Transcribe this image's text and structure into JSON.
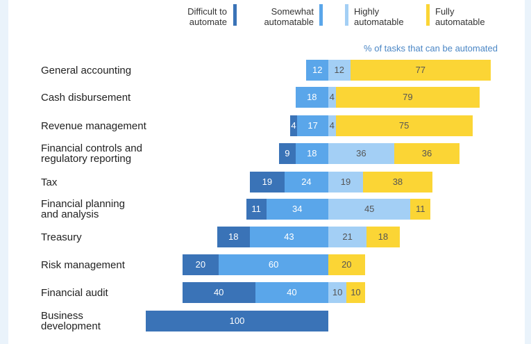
{
  "colors": {
    "difficult": "#3a73b7",
    "somewhat": "#5aa6ea",
    "highly": "#a3cff5",
    "fully": "#fbd535",
    "background": "#eaf3fb"
  },
  "chart_data": {
    "type": "bar",
    "orientation": "horizontal-diverging",
    "title": "% of tasks that can be automated",
    "legend": [
      {
        "key": "difficult",
        "label": [
          "Difficult to",
          "automate"
        ]
      },
      {
        "key": "somewhat",
        "label": [
          "Somewhat",
          "automatable"
        ]
      },
      {
        "key": "highly",
        "label": [
          "Highly",
          "automatable"
        ]
      },
      {
        "key": "fully",
        "label": [
          "Fully",
          "automatable"
        ]
      }
    ],
    "categories": [
      [
        "General accounting"
      ],
      [
        "Cash disbursement"
      ],
      [
        "Revenue management"
      ],
      [
        "Financial controls and",
        "regulatory reporting"
      ],
      [
        "Tax"
      ],
      [
        "Financial planning",
        "and analysis"
      ],
      [
        "Treasury"
      ],
      [
        "Risk management"
      ],
      [
        "Financial audit"
      ],
      [
        "Business",
        "development"
      ]
    ],
    "series": [
      {
        "key": "difficult",
        "name": "Difficult to automate",
        "values": [
          0,
          0,
          4,
          9,
          19,
          11,
          18,
          20,
          40,
          100
        ]
      },
      {
        "key": "somewhat",
        "name": "Somewhat automatable",
        "values": [
          12,
          18,
          17,
          18,
          24,
          34,
          43,
          60,
          40,
          0
        ]
      },
      {
        "key": "highly",
        "name": "Highly automatable",
        "values": [
          12,
          4,
          4,
          36,
          19,
          45,
          21,
          0,
          10,
          0
        ]
      },
      {
        "key": "fully",
        "name": "Fully automatable",
        "values": [
          77,
          79,
          75,
          36,
          38,
          11,
          18,
          20,
          10,
          0
        ]
      }
    ]
  }
}
